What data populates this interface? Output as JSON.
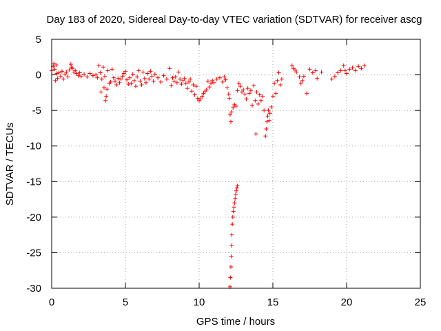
{
  "chart_data": {
    "type": "scatter",
    "title": "Day 183 of 2020, Sidereal Day-to-day VTEC variation (SDTVAR) for receiver ascg",
    "xlabel": "GPS time / hours",
    "ylabel": "SDTVAR / TECUs",
    "xlim": [
      0,
      25
    ],
    "ylim": [
      -30,
      5
    ],
    "xticks": [
      0,
      5,
      10,
      15,
      20,
      25
    ],
    "yticks": [
      5,
      0,
      -5,
      -10,
      -15,
      -20,
      -25,
      -30
    ],
    "grid": true,
    "legend": "none",
    "marker": "+",
    "series_color": "#ff0000",
    "series": [
      {
        "name": "SDTVAR",
        "points": [
          [
            0.0,
            0.6
          ],
          [
            0.1,
            1.2
          ],
          [
            0.15,
            1.6
          ],
          [
            0.2,
            0.8
          ],
          [
            0.25,
            -0.8
          ],
          [
            0.3,
            1.4
          ],
          [
            0.35,
            0.2
          ],
          [
            0.4,
            -0.5
          ],
          [
            0.5,
            0.3
          ],
          [
            0.6,
            -0.2
          ],
          [
            0.7,
            0.5
          ],
          [
            0.8,
            -0.6
          ],
          [
            0.9,
            0.1
          ],
          [
            1.0,
            0.4
          ],
          [
            1.1,
            -0.3
          ],
          [
            1.2,
            0.7
          ],
          [
            1.3,
            1.5
          ],
          [
            1.35,
            1.1
          ],
          [
            1.4,
            0.9
          ],
          [
            1.5,
            0.4
          ],
          [
            1.6,
            0.6
          ],
          [
            1.7,
            0.2
          ],
          [
            1.8,
            -0.1
          ],
          [
            1.9,
            0.3
          ],
          [
            2.0,
            -0.2
          ],
          [
            2.2,
            0.1
          ],
          [
            2.4,
            -0.3
          ],
          [
            2.6,
            0.2
          ],
          [
            2.8,
            -0.1
          ],
          [
            3.0,
            0.0
          ],
          [
            3.1,
            -0.4
          ],
          [
            3.2,
            1.3
          ],
          [
            3.3,
            0.3
          ],
          [
            3.35,
            -2.4
          ],
          [
            3.4,
            -0.6
          ],
          [
            3.5,
            1.1
          ],
          [
            3.55,
            -1.8
          ],
          [
            3.6,
            -0.2
          ],
          [
            3.65,
            -3.6
          ],
          [
            3.7,
            -3.0
          ],
          [
            3.75,
            -2.0
          ],
          [
            3.8,
            0.6
          ],
          [
            3.9,
            -1.2
          ],
          [
            4.0,
            -1.0
          ],
          [
            4.1,
            0.8
          ],
          [
            4.2,
            -0.4
          ],
          [
            4.3,
            -0.9
          ],
          [
            4.4,
            -1.4
          ],
          [
            4.5,
            -0.5
          ],
          [
            4.6,
            -1.1
          ],
          [
            4.7,
            -0.6
          ],
          [
            4.8,
            -0.2
          ],
          [
            4.9,
            0.2
          ],
          [
            5.0,
            0.5
          ],
          [
            5.1,
            -0.7
          ],
          [
            5.2,
            -1.3
          ],
          [
            5.3,
            -0.4
          ],
          [
            5.4,
            -1.2
          ],
          [
            5.5,
            0.1
          ],
          [
            5.6,
            -0.8
          ],
          [
            5.7,
            -1.6
          ],
          [
            5.8,
            -0.3
          ],
          [
            5.9,
            0.6
          ],
          [
            6.0,
            -0.9
          ],
          [
            6.1,
            -1.4
          ],
          [
            6.2,
            0.4
          ],
          [
            6.3,
            -0.5
          ],
          [
            6.4,
            -1.1
          ],
          [
            6.5,
            0.2
          ],
          [
            6.6,
            -0.6
          ],
          [
            6.7,
            0.5
          ],
          [
            6.8,
            -0.2
          ],
          [
            6.9,
            -0.9
          ],
          [
            7.0,
            0.1
          ],
          [
            7.2,
            -0.4
          ],
          [
            7.4,
            -1.0
          ],
          [
            7.6,
            -0.1
          ],
          [
            7.8,
            -0.6
          ],
          [
            8.0,
            0.9
          ],
          [
            8.1,
            -1.5
          ],
          [
            8.2,
            -0.4
          ],
          [
            8.3,
            -0.9
          ],
          [
            8.4,
            -0.3
          ],
          [
            8.5,
            -1.1
          ],
          [
            8.6,
            0.4
          ],
          [
            8.7,
            -0.6
          ],
          [
            8.8,
            -1.3
          ],
          [
            8.9,
            -0.8
          ],
          [
            9.0,
            -0.5
          ],
          [
            9.1,
            -1.2
          ],
          [
            9.2,
            -1.9
          ],
          [
            9.3,
            -1.0
          ],
          [
            9.4,
            -0.6
          ],
          [
            9.5,
            -2.3
          ],
          [
            9.6,
            -1.4
          ],
          [
            9.7,
            -2.8
          ],
          [
            9.8,
            -1.6
          ],
          [
            9.9,
            -3.3
          ],
          [
            10.0,
            -3.6
          ],
          [
            10.1,
            -3.4
          ],
          [
            10.2,
            -3.0
          ],
          [
            10.3,
            -2.6
          ],
          [
            10.4,
            -2.3
          ],
          [
            10.5,
            -2.1
          ],
          [
            10.6,
            -0.9
          ],
          [
            10.7,
            -1.7
          ],
          [
            10.8,
            -1.2
          ],
          [
            10.9,
            -0.8
          ],
          [
            11.0,
            -1.1
          ],
          [
            11.2,
            -0.6
          ],
          [
            11.4,
            -0.4
          ],
          [
            11.6,
            -1.0
          ],
          [
            11.7,
            -0.3
          ],
          [
            11.8,
            -0.7
          ],
          [
            11.9,
            -1.8
          ],
          [
            12.0,
            -2.7
          ],
          [
            12.05,
            -3.3
          ],
          [
            12.1,
            -5.6
          ],
          [
            12.15,
            -6.6
          ],
          [
            12.2,
            -5.2
          ],
          [
            12.3,
            -4.6
          ],
          [
            12.4,
            -4.2
          ],
          [
            12.5,
            -4.4
          ],
          [
            12.1,
            -29.8
          ],
          [
            12.12,
            -28.5
          ],
          [
            12.15,
            -27.0
          ],
          [
            12.18,
            -25.5
          ],
          [
            12.2,
            -24.0
          ],
          [
            12.22,
            -22.5
          ],
          [
            12.25,
            -21.0
          ],
          [
            12.28,
            -20.0
          ],
          [
            12.32,
            -19.2
          ],
          [
            12.36,
            -18.6
          ],
          [
            12.4,
            -18.0
          ],
          [
            12.44,
            -17.4
          ],
          [
            12.48,
            -16.8
          ],
          [
            12.52,
            -16.3
          ],
          [
            12.56,
            -15.9
          ],
          [
            12.6,
            -15.6
          ],
          [
            12.6,
            -2.2
          ],
          [
            12.7,
            -1.2
          ],
          [
            12.8,
            -1.6
          ],
          [
            12.9,
            -2.4
          ],
          [
            13.0,
            -2.1
          ],
          [
            13.1,
            -2.7
          ],
          [
            13.2,
            -3.4
          ],
          [
            13.3,
            -1.9
          ],
          [
            13.4,
            -2.6
          ],
          [
            13.5,
            -2.2
          ],
          [
            13.6,
            -4.3
          ],
          [
            13.7,
            -1.5
          ],
          [
            13.8,
            -3.6
          ],
          [
            13.85,
            -8.3
          ],
          [
            13.9,
            -2.4
          ],
          [
            14.0,
            -4.1
          ],
          [
            14.1,
            -2.8
          ],
          [
            14.2,
            -3.6
          ],
          [
            14.3,
            -3.0
          ],
          [
            14.4,
            -5.0
          ],
          [
            14.5,
            -8.6
          ],
          [
            14.55,
            -7.6
          ],
          [
            14.6,
            -6.6
          ],
          [
            14.65,
            -5.8
          ],
          [
            14.7,
            -5.0
          ],
          [
            14.75,
            -6.4
          ],
          [
            14.8,
            -5.4
          ],
          [
            14.9,
            -4.5
          ],
          [
            15.0,
            -3.0
          ],
          [
            15.1,
            -1.2
          ],
          [
            15.2,
            -2.6
          ],
          [
            15.3,
            -0.8
          ],
          [
            15.4,
            0.3
          ],
          [
            15.5,
            -1.4
          ],
          [
            15.6,
            -0.6
          ],
          [
            16.3,
            1.3
          ],
          [
            16.4,
            0.9
          ],
          [
            16.5,
            0.7
          ],
          [
            16.6,
            0.4
          ],
          [
            16.8,
            -0.3
          ],
          [
            16.9,
            -1.2
          ],
          [
            17.0,
            -0.8
          ],
          [
            17.1,
            -0.2
          ],
          [
            17.3,
            -2.6
          ],
          [
            17.5,
            0.8
          ],
          [
            17.7,
            0.3
          ],
          [
            17.9,
            0.6
          ],
          [
            18.0,
            -0.5
          ],
          [
            18.3,
            0.4
          ],
          [
            19.0,
            -0.6
          ],
          [
            19.2,
            -0.2
          ],
          [
            19.4,
            0.3
          ],
          [
            19.6,
            0.6
          ],
          [
            19.8,
            1.3
          ],
          [
            19.9,
            0.6
          ],
          [
            20.0,
            0.2
          ],
          [
            20.2,
            0.8
          ],
          [
            20.4,
            1.0
          ],
          [
            20.6,
            0.6
          ],
          [
            20.8,
            1.2
          ],
          [
            21.0,
            0.9
          ],
          [
            21.2,
            1.3
          ]
        ]
      }
    ]
  }
}
